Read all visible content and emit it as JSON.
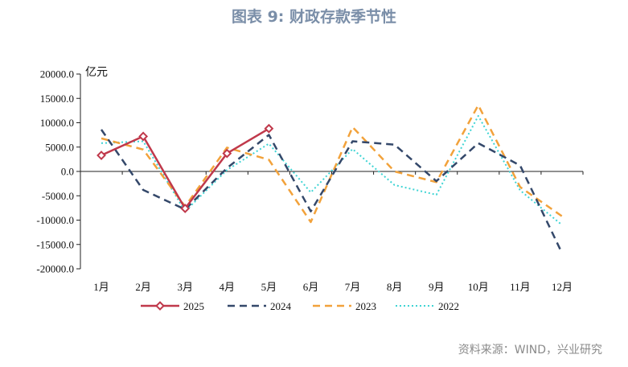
{
  "figure": {
    "title": "图表 9: 财政存款季节性",
    "source": "资料来源：WIND，兴业研究"
  },
  "chart_data": {
    "type": "line",
    "categories": [
      "1月",
      "2月",
      "3月",
      "4月",
      "5月",
      "6月",
      "7月",
      "8月",
      "9月",
      "10月",
      "11月",
      "12月"
    ],
    "ylabel": "亿元",
    "ylim": [
      -20000,
      20000
    ],
    "y_ticks": [
      "20000.0",
      "15000.0",
      "10000.0",
      "5000.0",
      "0.0",
      "-5000.0",
      "-10000.0",
      "-15000.0",
      "-20000.0"
    ],
    "grid": false,
    "legend_position": "bottom",
    "series": [
      {
        "name": "2025",
        "color": "#c0394b",
        "style": "solid-diamond",
        "values": [
          3300,
          7200,
          -7600,
          3700,
          8800,
          null,
          null,
          null,
          null,
          null,
          null,
          null
        ]
      },
      {
        "name": "2024",
        "color": "#34486a",
        "style": "dashed",
        "values": [
          8600,
          -3800,
          -7800,
          700,
          7500,
          -8200,
          6200,
          5500,
          -2000,
          5800,
          1200,
          -16800
        ]
      },
      {
        "name": "2023",
        "color": "#f2a23b",
        "style": "dashed",
        "values": [
          6800,
          4500,
          -7200,
          4900,
          2400,
          -10400,
          9100,
          0,
          -2200,
          13600,
          -3200,
          -9200
        ]
      },
      {
        "name": "2022",
        "color": "#3fd4d4",
        "style": "dotted",
        "values": [
          5800,
          6200,
          -8200,
          300,
          5700,
          -4300,
          4600,
          -2800,
          -4800,
          11400,
          -3900,
          -11000
        ]
      }
    ]
  }
}
